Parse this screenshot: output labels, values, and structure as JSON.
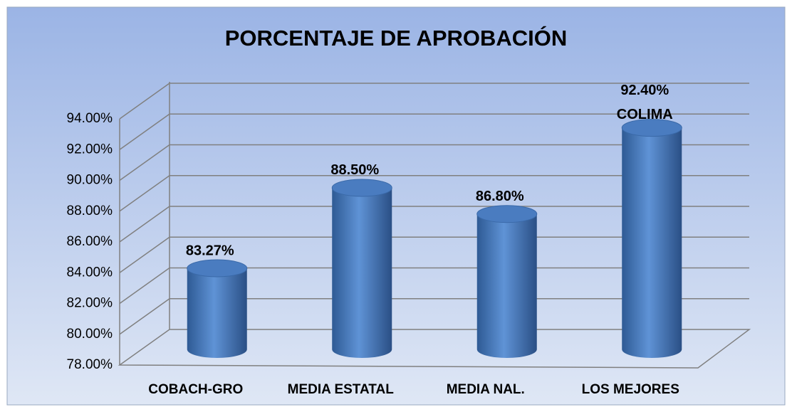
{
  "chart_data": {
    "type": "bar3d",
    "title": "PORCENTAJE DE APROBACIÓN",
    "categories": [
      "COBACH-GRO",
      "MEDIA ESTATAL",
      "MEDIA NAL.",
      "LOS MEJORES"
    ],
    "values": [
      83.27,
      88.5,
      86.8,
      92.4
    ],
    "value_labels": [
      "83.27%",
      "88.50%",
      "86.80%",
      "92.40%"
    ],
    "annotation": "COLIMA",
    "color": "#4f81bd",
    "ylim": [
      78,
      94
    ],
    "yticks": [
      {
        "value": 78,
        "label": "78.00%"
      },
      {
        "value": 80,
        "label": "80.00%"
      },
      {
        "value": 82,
        "label": "82.00%"
      },
      {
        "value": 84,
        "label": "84.00%"
      },
      {
        "value": 86,
        "label": "86.00%"
      },
      {
        "value": 88,
        "label": "88.00%"
      },
      {
        "value": 90,
        "label": "90.00%"
      },
      {
        "value": 92,
        "label": "92.00%"
      },
      {
        "value": 94,
        "label": "94.00%"
      }
    ],
    "grid": true
  }
}
